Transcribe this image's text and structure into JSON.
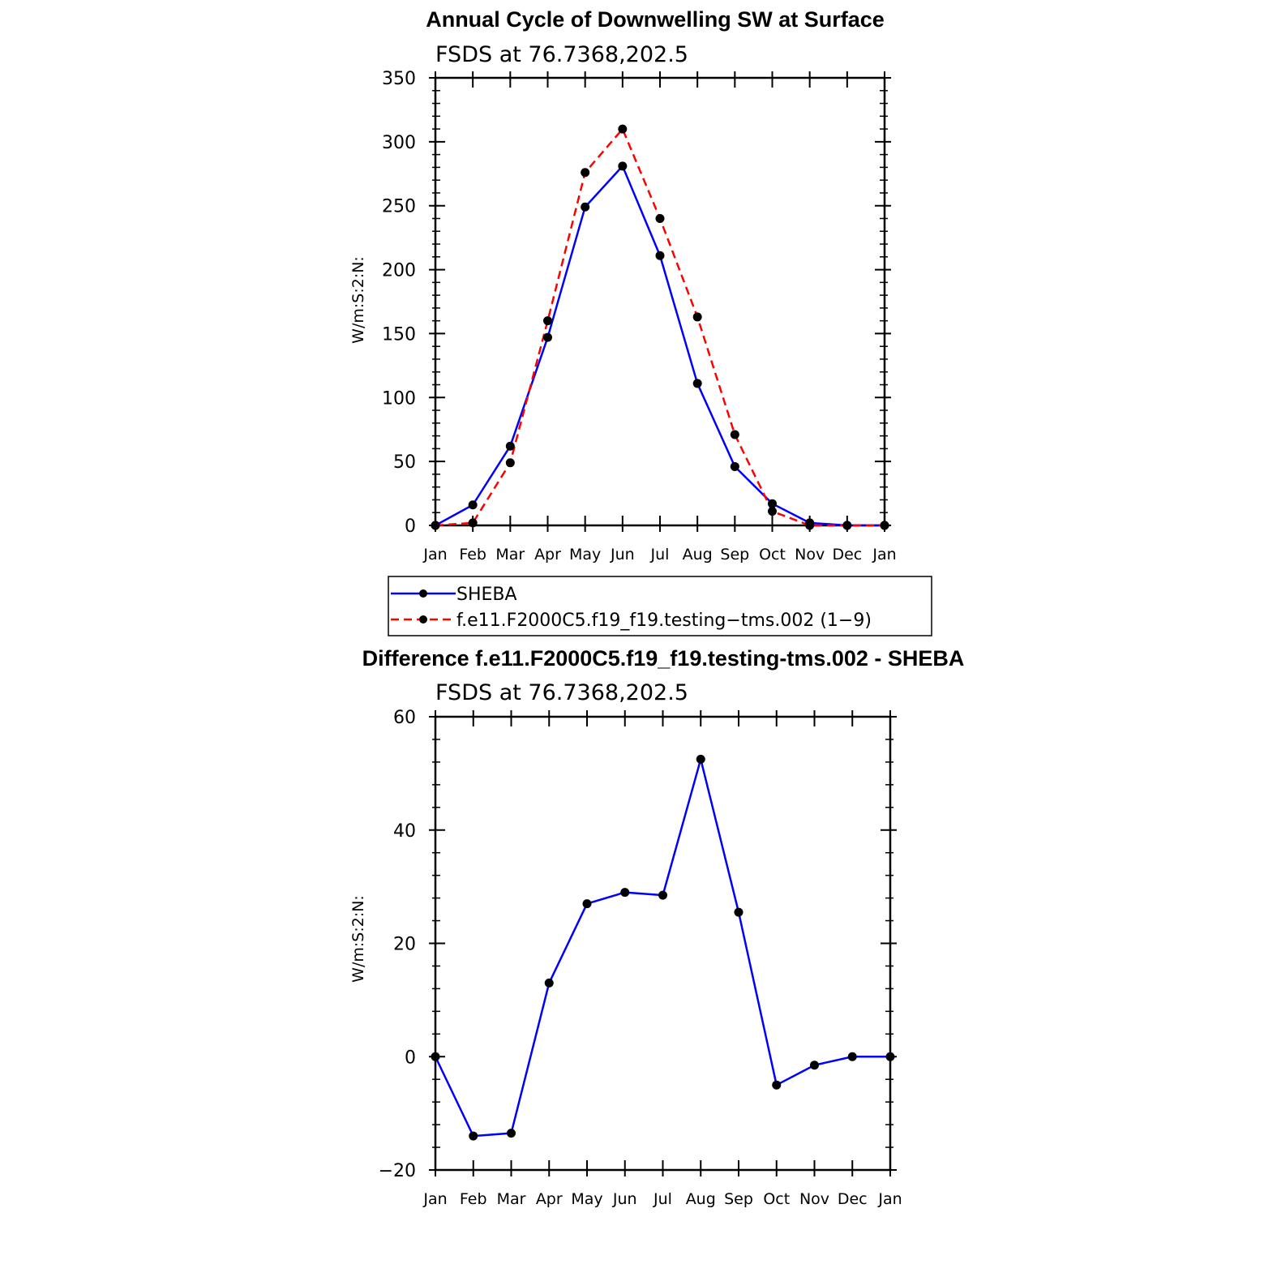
{
  "chart_data": [
    {
      "type": "line",
      "title": "Annual Cycle of Downwelling SW at Surface",
      "subtitle": "FSDS at 76.7368,202.5",
      "xlabel": "",
      "ylabel": "W/m:S:2:N:",
      "categories": [
        "Jan",
        "Feb",
        "Mar",
        "Apr",
        "May",
        "Jun",
        "Jul",
        "Aug",
        "Sep",
        "Oct",
        "Nov",
        "Dec",
        "Jan"
      ],
      "ylim": [
        0,
        350
      ],
      "yticks": [
        0,
        50,
        100,
        150,
        200,
        250,
        300,
        350
      ],
      "ytick_labels": [
        "0",
        "50",
        "100",
        "150",
        "200",
        "250",
        "300",
        "350"
      ],
      "series": [
        {
          "name": "SHEBA",
          "color": "#0000ff",
          "dash": "solid",
          "values": [
            0,
            16,
            62,
            147,
            249,
            281,
            211,
            111,
            46,
            17,
            2,
            0,
            0
          ]
        },
        {
          "name": "f.e11.F2000C5.f19_f19.testing−tms.002 (1−9)",
          "color": "#ff0000",
          "dash": "dashed",
          "values": [
            0,
            2,
            49,
            160,
            276,
            310,
            240,
            163,
            71,
            11,
            0,
            0,
            0
          ]
        }
      ],
      "legend": "below"
    },
    {
      "type": "line",
      "title": "Difference f.e11.F2000C5.f19_f19.testing-tms.002 - SHEBA",
      "subtitle": "FSDS at 76.7368,202.5",
      "xlabel": "",
      "ylabel": "W/m:S:2:N:",
      "categories": [
        "Jan",
        "Feb",
        "Mar",
        "Apr",
        "May",
        "Jun",
        "Jul",
        "Aug",
        "Sep",
        "Oct",
        "Nov",
        "Dec",
        "Jan"
      ],
      "ylim": [
        -20,
        60
      ],
      "yticks": [
        -20,
        0,
        20,
        40,
        60
      ],
      "ytick_labels": [
        "−20",
        "0",
        "20",
        "40",
        "60"
      ],
      "series": [
        {
          "name": "Difference",
          "color": "#0000ff",
          "dash": "solid",
          "values": [
            0,
            -14,
            -13.5,
            13,
            27,
            29,
            28.5,
            52.5,
            25.5,
            -5,
            -1.5,
            0,
            0
          ]
        }
      ]
    }
  ]
}
